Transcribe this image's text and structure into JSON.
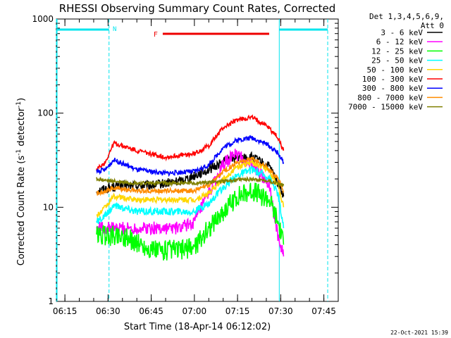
{
  "chart_data": {
    "type": "line",
    "title": "RHESSI Observing Summary Count Rates, Corrected",
    "ylabel_main": "Corrected Count Rate (s",
    "ylabel_sup1": "-1",
    "ylabel_mid": " detector",
    "ylabel_sup2": "-1",
    "ylabel_end": ")",
    "xlabel": "Start Time (18-Apr-14 06:12:02)",
    "y_scale": "log",
    "ylim": [
      1,
      1000
    ],
    "xlim": [
      "06:12:02",
      "07:50:00"
    ],
    "x_ticks": [
      "06:15",
      "06:30",
      "06:45",
      "07:00",
      "07:15",
      "07:30",
      "07:45"
    ],
    "y_ticks": [
      "1",
      "10",
      "100",
      "1000"
    ],
    "legend_header": [
      "Det 1,3,4,5,6,9,",
      "Att 0"
    ],
    "legend_placement": "right",
    "timestamp": "22-Oct-2021 15:39",
    "night_label": "N",
    "flare_label": "F",
    "night_intervals": [
      [
        "06:12:02",
        "06:30:20"
      ],
      [
        "07:29:30",
        "07:46:20"
      ]
    ],
    "flare_interval": [
      "06:49:00",
      "07:26:00"
    ],
    "series": [
      {
        "name": "3 - 6 keV",
        "color": "#000000",
        "t": [
          "06:26",
          "06:30",
          "06:35",
          "06:45",
          "06:55",
          "07:05",
          "07:12",
          "07:20",
          "07:26",
          "07:30",
          "07:31"
        ],
        "values": [
          15,
          16,
          17,
          17,
          19,
          25,
          33,
          34,
          27,
          16,
          13
        ]
      },
      {
        "name": "6 - 12 keV",
        "color": "#ff00ff",
        "t": [
          "06:26",
          "06:30",
          "06:35",
          "06:45",
          "06:55",
          "07:00",
          "07:05",
          "07:10",
          "07:14",
          "07:20",
          "07:26",
          "07:29",
          "07:31"
        ],
        "values": [
          6,
          6,
          6,
          6,
          6,
          7,
          14,
          28,
          37,
          28,
          18,
          5,
          3
        ]
      },
      {
        "name": "12 - 25 keV",
        "color": "#00ff00",
        "t": [
          "06:26",
          "06:30",
          "06:35",
          "06:45",
          "06:55",
          "07:00",
          "07:05",
          "07:10",
          "07:15",
          "07:20",
          "07:26",
          "07:29",
          "07:31"
        ],
        "values": [
          5,
          5,
          5,
          3.5,
          3.5,
          3.8,
          6,
          9,
          13,
          15,
          12,
          7,
          4
        ]
      },
      {
        "name": "25 - 50 keV",
        "color": "#00ffff",
        "t": [
          "06:26",
          "06:29",
          "06:32",
          "06:40",
          "06:50",
          "07:00",
          "07:05",
          "07:10",
          "07:15",
          "07:20",
          "07:26",
          "07:29",
          "07:31"
        ],
        "values": [
          7,
          8,
          10.5,
          9,
          9,
          9,
          11,
          16,
          22,
          25,
          21,
          14,
          6
        ]
      },
      {
        "name": "50 - 100 keV",
        "color": "#ffd700",
        "t": [
          "06:26",
          "06:29",
          "06:32",
          "06:40",
          "06:50",
          "07:00",
          "07:05",
          "07:10",
          "07:15",
          "07:20",
          "07:26",
          "07:29",
          "07:31"
        ],
        "values": [
          8,
          10,
          13,
          12,
          12,
          12,
          14,
          20,
          27,
          30,
          25,
          17,
          10
        ]
      },
      {
        "name": "100 - 300 keV",
        "color": "#ff0000",
        "t": [
          "06:26",
          "06:29",
          "06:32",
          "06:40",
          "06:50",
          "07:00",
          "07:05",
          "07:10",
          "07:15",
          "07:20",
          "07:25",
          "07:29",
          "07:31"
        ],
        "values": [
          25,
          30,
          48,
          40,
          34,
          37,
          45,
          70,
          85,
          90,
          75,
          55,
          40
        ]
      },
      {
        "name": "300 - 800 keV",
        "color": "#0000ff",
        "t": [
          "06:26",
          "06:29",
          "06:32",
          "06:40",
          "06:50",
          "07:00",
          "07:05",
          "07:10",
          "07:15",
          "07:20",
          "07:25",
          "07:29",
          "07:31"
        ],
        "values": [
          24,
          25,
          32,
          25,
          23,
          24,
          28,
          43,
          52,
          55,
          47,
          38,
          30
        ]
      },
      {
        "name": "800 - 7000 keV",
        "color": "#ff8c00",
        "t": [
          "06:26",
          "06:29",
          "06:32",
          "06:40",
          "06:50",
          "07:00",
          "07:05",
          "07:10",
          "07:15",
          "07:20",
          "07:25",
          "07:29",
          "07:31"
        ],
        "values": [
          14,
          15,
          16,
          15,
          15,
          15,
          17,
          24,
          30,
          33,
          27,
          20,
          15
        ]
      },
      {
        "name": "7000 - 15000 keV",
        "color": "#808000",
        "t": [
          "06:26",
          "06:30",
          "06:40",
          "06:50",
          "07:00",
          "07:10",
          "07:20",
          "07:26",
          "07:31"
        ],
        "values": [
          20,
          19,
          18,
          18,
          18,
          19,
          20,
          19,
          17
        ]
      }
    ]
  }
}
